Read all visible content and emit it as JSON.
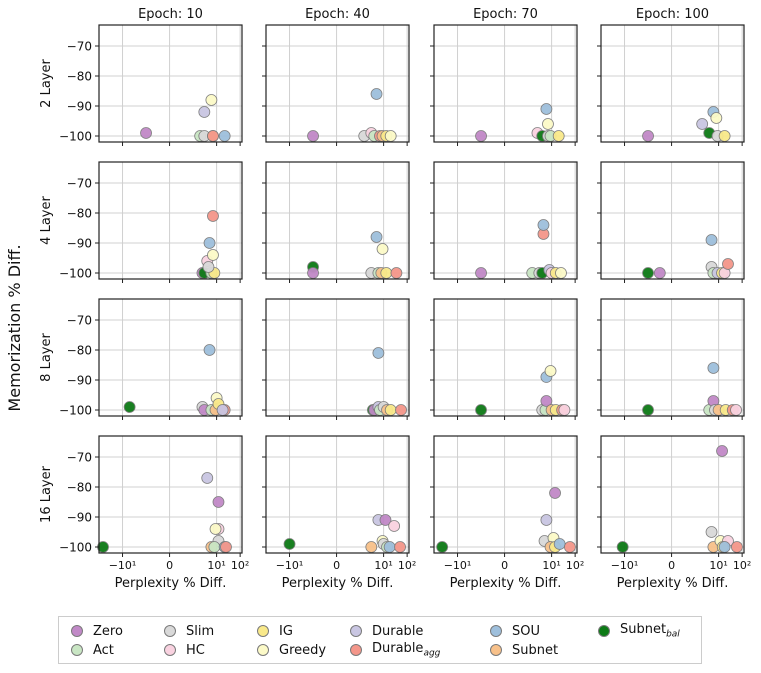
{
  "chart_data": {
    "type": "scatter",
    "ylabel": "Memorization % Diff.",
    "xlabel": "Perplexity % Diff.",
    "col_titles": [
      "Epoch: 10",
      "Epoch: 40",
      "Epoch: 70",
      "Epoch: 100"
    ],
    "row_labels": [
      "2 Layer",
      "4 Layer",
      "8 Layer",
      "16 Layer"
    ],
    "y_ticks": [
      -100,
      -90,
      -80,
      -70
    ],
    "y_tick_labels": [
      "−100",
      "−90",
      "−80",
      "−70"
    ],
    "ylim": [
      -102,
      -63
    ],
    "xscale": "symlog",
    "x_ticks": [
      -10,
      0,
      10,
      100
    ],
    "x_tick_labels": [
      "−10¹",
      "0",
      "10¹",
      "10²"
    ],
    "xlim": [
      -100,
      120
    ],
    "grid": true,
    "legend_position": "bottom",
    "series": [
      {
        "name": "Zero",
        "color": "#c189c7",
        "alpha": 1
      },
      {
        "name": "Act",
        "color": "#c9e6c4",
        "alpha": 1
      },
      {
        "name": "Slim",
        "color": "#d9d9d9",
        "alpha": 1
      },
      {
        "name": "HC",
        "color": "#f9d2e0",
        "alpha": 1
      },
      {
        "name": "IG",
        "color": "#f9e98a",
        "alpha": 1
      },
      {
        "name": "Greedy",
        "color": "#fcfac8",
        "alpha": 1
      },
      {
        "name": "Durable",
        "color": "#c9c6e2",
        "alpha": 1
      },
      {
        "name": "Durable_agg",
        "color": "#f4968a",
        "alpha": 1
      },
      {
        "name": "SOU",
        "color": "#9ebfdc",
        "alpha": 1
      },
      {
        "name": "Subnet",
        "color": "#f8c18a",
        "alpha": 1
      },
      {
        "name": "Subnet_bal",
        "color": "#0d7a16",
        "alpha": 1
      }
    ],
    "panels": [
      {
        "row": 0,
        "col": 0,
        "points": [
          [
            "Zero",
            -1,
            -99
          ],
          [
            "Act",
            2,
            -100
          ],
          [
            "Slim",
            3,
            -100
          ],
          [
            "Durable",
            3,
            -92
          ],
          [
            "Greedy",
            6,
            -88
          ],
          [
            "IG",
            7,
            -100
          ],
          [
            "SOU",
            22,
            -100
          ],
          [
            "Durable_agg",
            7,
            -100
          ]
        ]
      },
      {
        "row": 0,
        "col": 1,
        "points": [
          [
            "Zero",
            -1,
            -100
          ],
          [
            "Slim",
            1.5,
            -100
          ],
          [
            "HC",
            3,
            -99
          ],
          [
            "Act",
            4,
            -100
          ],
          [
            "SOU",
            5,
            -86
          ],
          [
            "Durable_agg",
            7,
            -100
          ],
          [
            "Subnet",
            9,
            -100
          ],
          [
            "IG",
            13,
            -100
          ],
          [
            "Greedy",
            20,
            -100
          ]
        ]
      },
      {
        "row": 0,
        "col": 2,
        "points": [
          [
            "Zero",
            -1,
            -100
          ],
          [
            "HC",
            2.5,
            -99
          ],
          [
            "Subnet_bal",
            4,
            -100
          ],
          [
            "SOU",
            6,
            -91
          ],
          [
            "Greedy",
            7,
            -96
          ],
          [
            "Slim",
            7,
            -100
          ],
          [
            "Act",
            9,
            -100
          ],
          [
            "IG",
            20,
            -100
          ]
        ]
      },
      {
        "row": 0,
        "col": 3,
        "points": [
          [
            "Zero",
            -1,
            -100
          ],
          [
            "Durable",
            2,
            -96
          ],
          [
            "Subnet_bal",
            4,
            -99
          ],
          [
            "SOU",
            6,
            -92
          ],
          [
            "Greedy",
            8,
            -94
          ],
          [
            "Slim",
            9,
            -100
          ],
          [
            "IG",
            18,
            -100
          ]
        ]
      },
      {
        "row": 1,
        "col": 0,
        "points": [
          [
            "Zero",
            2.5,
            -100
          ],
          [
            "Subnet_bal",
            3,
            -100
          ],
          [
            "HC",
            4,
            -96
          ],
          [
            "SOU",
            5,
            -90
          ],
          [
            "Durable_agg",
            7,
            -81
          ],
          [
            "Greedy",
            7,
            -94
          ],
          [
            "Act",
            6,
            -100
          ],
          [
            "IG",
            8,
            -100
          ],
          [
            "Slim",
            4.5,
            -98
          ]
        ]
      },
      {
        "row": 1,
        "col": 1,
        "points": [
          [
            "Subnet_bal",
            -1,
            -98
          ],
          [
            "Zero",
            -1,
            -100
          ],
          [
            "Slim",
            3,
            -100
          ],
          [
            "SOU",
            5,
            -88
          ],
          [
            "Act",
            6,
            -100
          ],
          [
            "Greedy",
            9,
            -92
          ],
          [
            "Subnet",
            8,
            -100
          ],
          [
            "IG",
            13,
            -100
          ],
          [
            "Durable_agg",
            35,
            -100
          ]
        ]
      },
      {
        "row": 1,
        "col": 2,
        "points": [
          [
            "Zero",
            -1,
            -100
          ],
          [
            "Act",
            1.5,
            -100
          ],
          [
            "Slim",
            3,
            -100
          ],
          [
            "Subnet_bal",
            4,
            -100
          ],
          [
            "Durable_agg",
            4.5,
            -87
          ],
          [
            "SOU",
            4.5,
            -84
          ],
          [
            "Durable",
            8,
            -99
          ],
          [
            "HC",
            10,
            -100
          ],
          [
            "IG",
            15,
            -100
          ],
          [
            "Greedy",
            25,
            -100
          ]
        ]
      },
      {
        "row": 1,
        "col": 3,
        "points": [
          [
            "Subnet_bal",
            -1,
            -100
          ],
          [
            "Zero",
            -0.5,
            -100
          ],
          [
            "SOU",
            5,
            -89
          ],
          [
            "Slim",
            5,
            -98
          ],
          [
            "Act",
            6,
            -100
          ],
          [
            "Durable",
            9,
            -100
          ],
          [
            "IG",
            14,
            -100
          ],
          [
            "HC",
            18,
            -100
          ],
          [
            "Durable_agg",
            25,
            -97
          ]
        ]
      },
      {
        "row": 2,
        "col": 0,
        "points": [
          [
            "Subnet_bal",
            -5,
            -99
          ],
          [
            "Slim",
            2.5,
            -99
          ],
          [
            "Zero",
            3,
            -100
          ],
          [
            "SOU",
            5,
            -80
          ],
          [
            "Act",
            6,
            -100
          ],
          [
            "Greedy",
            10,
            -96
          ],
          [
            "Subnet",
            9,
            -100
          ],
          [
            "IG",
            12,
            -98
          ],
          [
            "Durable_agg",
            22,
            -100
          ],
          [
            "Durable",
            18,
            -100
          ]
        ]
      },
      {
        "row": 2,
        "col": 1,
        "points": [
          [
            "Subnet_bal",
            3.5,
            -100
          ],
          [
            "Zero",
            4,
            -100
          ],
          [
            "SOU",
            6,
            -81
          ],
          [
            "Durable",
            6,
            -99
          ],
          [
            "Act",
            7,
            -100
          ],
          [
            "Slim",
            10,
            -99
          ],
          [
            "Subnet",
            14,
            -100
          ],
          [
            "IG",
            20,
            -100
          ],
          [
            "Durable_agg",
            55,
            -100
          ]
        ]
      },
      {
        "row": 2,
        "col": 2,
        "points": [
          [
            "Subnet_bal",
            -1,
            -100
          ],
          [
            "Slim",
            4,
            -100
          ],
          [
            "Act",
            5.5,
            -100
          ],
          [
            "SOU",
            6,
            -89
          ],
          [
            "Zero",
            6,
            -97
          ],
          [
            "Greedy",
            9,
            -87
          ],
          [
            "Subnet",
            10,
            -100
          ],
          [
            "IG",
            15,
            -100
          ],
          [
            "Durable_agg",
            28,
            -100
          ],
          [
            "HC",
            35,
            -100
          ]
        ]
      },
      {
        "row": 2,
        "col": 3,
        "points": [
          [
            "Subnet_bal",
            -1,
            -100
          ],
          [
            "Act",
            4,
            -100
          ],
          [
            "SOU",
            6,
            -86
          ],
          [
            "Zero",
            6,
            -97
          ],
          [
            "Slim",
            7,
            -100
          ],
          [
            "Subnet",
            10,
            -100
          ],
          [
            "IG",
            20,
            -100
          ],
          [
            "Durable_agg",
            40,
            -100
          ],
          [
            "HC",
            55,
            -100
          ]
        ]
      },
      {
        "row": 3,
        "col": 0,
        "points": [
          [
            "Subnet_bal",
            -80,
            -100
          ],
          [
            "Durable",
            4,
            -77
          ],
          [
            "Zero",
            12,
            -85
          ],
          [
            "HC",
            12,
            -94
          ],
          [
            "Greedy",
            9,
            -94
          ],
          [
            "Slim",
            12,
            -98
          ],
          [
            "Subnet",
            6,
            -100
          ],
          [
            "Act",
            8,
            -100
          ],
          [
            "SOU",
            22,
            -100
          ],
          [
            "Durable_agg",
            25,
            -100
          ]
        ]
      },
      {
        "row": 3,
        "col": 1,
        "points": [
          [
            "Subnet_bal",
            -10,
            -99
          ],
          [
            "Subnet",
            3,
            -100
          ],
          [
            "Durable",
            6,
            -91
          ],
          [
            "Zero",
            12,
            -91
          ],
          [
            "Greedy",
            9,
            -98
          ],
          [
            "HC",
            28,
            -93
          ],
          [
            "Slim",
            10,
            -99
          ],
          [
            "Act",
            14,
            -100
          ],
          [
            "SOU",
            18,
            -100
          ],
          [
            "Durable_agg",
            50,
            -100
          ]
        ]
      },
      {
        "row": 3,
        "col": 2,
        "points": [
          [
            "Subnet_bal",
            -45,
            -100
          ],
          [
            "Slim",
            5,
            -98
          ],
          [
            "Durable",
            6,
            -91
          ],
          [
            "Zero",
            14,
            -82
          ],
          [
            "Greedy",
            12,
            -97
          ],
          [
            "Subnet",
            9,
            -100
          ],
          [
            "IG",
            14,
            -100
          ],
          [
            "SOU",
            22,
            -99
          ],
          [
            "Durable_agg",
            60,
            -100
          ]
        ]
      },
      {
        "row": 3,
        "col": 3,
        "points": [
          [
            "Subnet_bal",
            -12,
            -100
          ],
          [
            "Slim",
            5,
            -95
          ],
          [
            "Subnet",
            6,
            -100
          ],
          [
            "Zero",
            14,
            -68
          ],
          [
            "Greedy",
            12,
            -98
          ],
          [
            "HC",
            25,
            -98
          ],
          [
            "IG",
            15,
            -100
          ],
          [
            "SOU",
            18,
            -100
          ],
          [
            "Durable_agg",
            60,
            -100
          ]
        ]
      }
    ]
  },
  "legend": {
    "items": [
      {
        "label": "Zero",
        "sub": ""
      },
      {
        "label": "Act",
        "sub": ""
      },
      {
        "label": "Slim",
        "sub": ""
      },
      {
        "label": "HC",
        "sub": ""
      },
      {
        "label": "IG",
        "sub": ""
      },
      {
        "label": "Greedy",
        "sub": ""
      },
      {
        "label": "Durable",
        "sub": ""
      },
      {
        "label": "Durable",
        "sub": "agg"
      },
      {
        "label": "SOU",
        "sub": ""
      },
      {
        "label": "Subnet",
        "sub": ""
      },
      {
        "label": "Subnet",
        "sub": "bal"
      }
    ]
  }
}
